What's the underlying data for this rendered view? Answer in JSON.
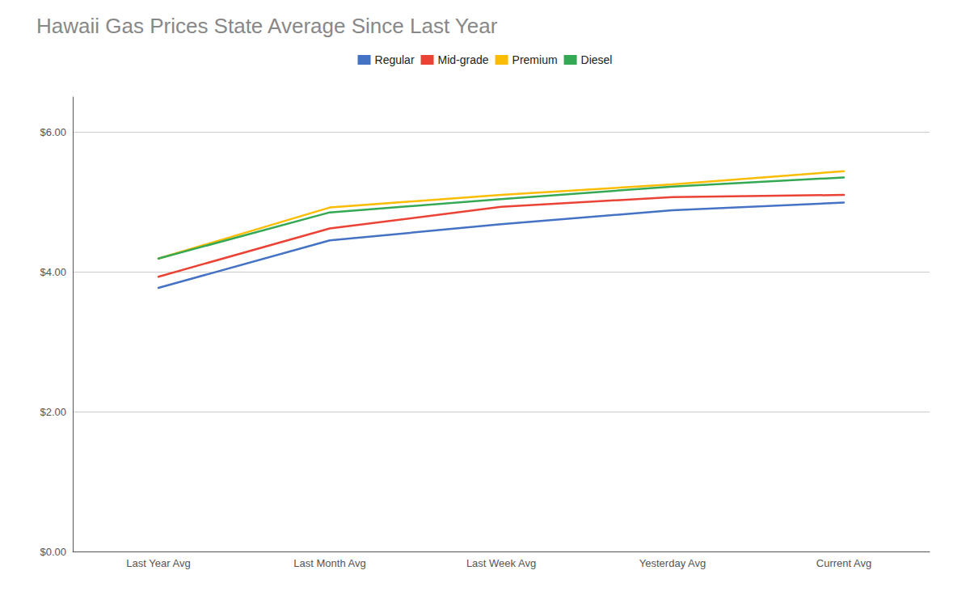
{
  "chart_data": {
    "type": "line",
    "title": "Hawaii Gas Prices State Average Since Last Year",
    "categories": [
      "Last Year Avg",
      "Last Month Avg",
      "Last Week Avg",
      "Yesterday Avg",
      "Current Avg"
    ],
    "series": [
      {
        "name": "Regular",
        "color": "#4472C4",
        "values": [
          3.77,
          4.45,
          4.68,
          4.88,
          4.99
        ]
      },
      {
        "name": "Mid-grade",
        "color": "#EA4335",
        "values": [
          3.93,
          4.62,
          4.93,
          5.07,
          5.1
        ]
      },
      {
        "name": "Premium",
        "color": "#FBBC04",
        "values": [
          4.19,
          4.92,
          5.1,
          5.25,
          5.44
        ]
      },
      {
        "name": "Diesel",
        "color": "#34A853",
        "values": [
          4.19,
          4.85,
          5.04,
          5.22,
          5.35
        ]
      }
    ],
    "ylim": [
      0,
      6.5
    ],
    "yticks": [
      {
        "value": 0,
        "label": "$0.00"
      },
      {
        "value": 2,
        "label": "$2.00"
      },
      {
        "value": 4,
        "label": "$4.00"
      },
      {
        "value": 6,
        "label": "$6.00"
      }
    ],
    "grid": true,
    "legend": "top"
  }
}
